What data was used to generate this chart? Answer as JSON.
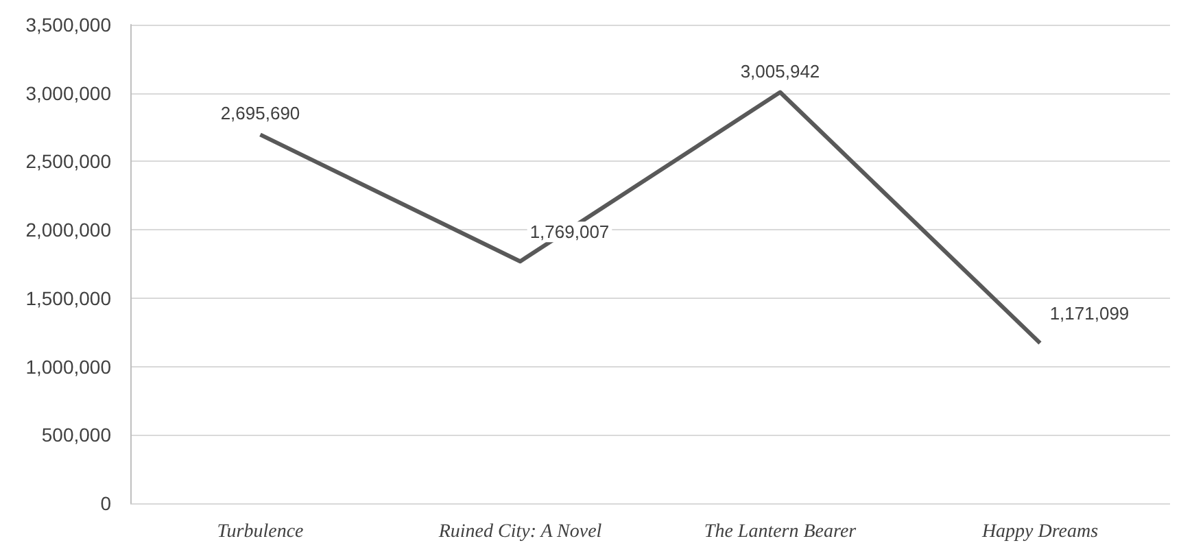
{
  "chart_data": {
    "type": "line",
    "categories": [
      "Turbulence",
      "Ruined City: A Novel",
      "The Lantern Bearer",
      "Happy Dreams"
    ],
    "series": [
      {
        "color": "#595959",
        "values": [
          2695690,
          1769007,
          3005942,
          1171099
        ],
        "value_labels": [
          "2,695,690",
          "1,769,007",
          "3,005,942",
          "1,171,099"
        ]
      }
    ],
    "ylim": [
      0,
      3500000
    ],
    "yticks": [
      0,
      {
        "value": 500000,
        "label": "500,000"
      },
      {
        "value": 1000000,
        "label": "1,000,000"
      },
      {
        "value": 1500000,
        "label": "1,500,000"
      },
      {
        "value": 2000000,
        "label": "2,000,000"
      },
      {
        "value": 2500000,
        "label": "2,500,000"
      },
      {
        "value": 3000000,
        "label": "3,000,000"
      },
      {
        "value": 3500000,
        "label": "3,500,000"
      }
    ],
    "grid": "y",
    "marker": "none"
  }
}
